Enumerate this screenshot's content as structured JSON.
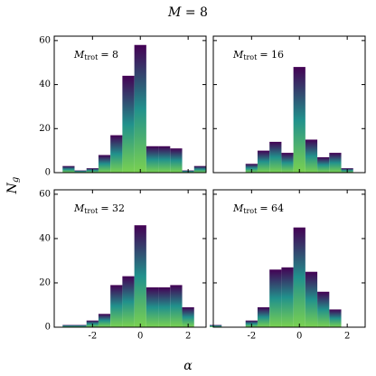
{
  "figure": {
    "title": [
      "M",
      "= 8"
    ],
    "xlabel": "α",
    "ylabel": [
      "N",
      "g"
    ]
  },
  "chart_data": [
    {
      "type": "histogram",
      "annotation": [
        "M",
        "trot",
        "= 8"
      ],
      "bins": [
        -3.25,
        -2.75,
        -2.25,
        -1.75,
        -1.25,
        -0.75,
        -0.25,
        0.25,
        0.75,
        1.25,
        1.75,
        2.25,
        2.75
      ],
      "values": [
        3,
        1,
        2,
        8,
        17,
        44,
        58,
        12,
        12,
        11,
        1,
        3
      ],
      "colors": [
        "#440154",
        "#7ad151"
      ],
      "xlim": [
        -3.6,
        2.75
      ],
      "ylim": [
        0,
        62
      ],
      "xticks": [
        -2,
        0,
        2
      ],
      "yticks": [
        0,
        20,
        40,
        60
      ]
    },
    {
      "type": "histogram",
      "annotation": [
        "M",
        "trot",
        "= 16"
      ],
      "bins": [
        -2.25,
        -1.75,
        -1.25,
        -0.75,
        -0.25,
        0.25,
        0.75,
        1.25,
        1.75,
        2.25
      ],
      "values": [
        4,
        10,
        14,
        9,
        48,
        15,
        7,
        9,
        2
      ],
      "colors": [
        "#440154",
        "#7ad151"
      ],
      "xlim": [
        -3.6,
        2.75
      ],
      "ylim": [
        0,
        62
      ],
      "xticks": [
        -2,
        0,
        2
      ],
      "yticks": [
        0,
        20,
        40,
        60
      ]
    },
    {
      "type": "histogram",
      "annotation": [
        "M",
        "trot",
        "= 32"
      ],
      "bins": [
        -3.25,
        -2.75,
        -2.25,
        -1.75,
        -1.25,
        -0.75,
        -0.25,
        0.25,
        0.75,
        1.25,
        1.75,
        2.25
      ],
      "values": [
        1,
        1,
        3,
        6,
        19,
        23,
        46,
        18,
        18,
        19,
        9
      ],
      "colors": [
        "#440154",
        "#7ad151"
      ],
      "xlim": [
        -3.6,
        2.75
      ],
      "ylim": [
        0,
        62
      ],
      "xticks": [
        -2,
        0,
        2
      ],
      "yticks": [
        0,
        20,
        40,
        60
      ]
    },
    {
      "type": "histogram",
      "annotation": [
        "M",
        "trot",
        "= 64"
      ],
      "bins": [
        -3.75,
        -3.25,
        -2.75,
        -2.25,
        -1.75,
        -1.25,
        -0.75,
        -0.25,
        0.25,
        0.75,
        1.25,
        1.75
      ],
      "values": [
        1,
        0,
        0,
        3,
        9,
        26,
        27,
        45,
        25,
        16,
        8
      ],
      "colors": [
        "#440154",
        "#7ad151"
      ],
      "xlim": [
        -3.6,
        2.75
      ],
      "ylim": [
        0,
        62
      ],
      "xticks": [
        -2,
        0,
        2
      ],
      "yticks": [
        0,
        20,
        40,
        60
      ]
    }
  ]
}
